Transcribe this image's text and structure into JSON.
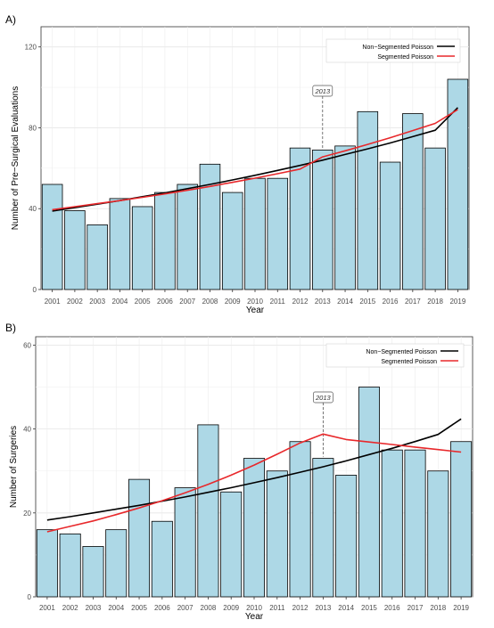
{
  "chart_data": [
    {
      "panel_label": "A)",
      "type": "bar",
      "xlabel": "Year",
      "ylabel": "Number of Pre−Surgical Evaluations",
      "ylim": [
        0,
        130
      ],
      "yticks": [
        0,
        40,
        80,
        120
      ],
      "categories": [
        "2001",
        "2002",
        "2003",
        "2004",
        "2005",
        "2006",
        "2007",
        "2008",
        "2009",
        "2010",
        "2011",
        "2012",
        "2013",
        "2014",
        "2015",
        "2016",
        "2017",
        "2018",
        "2019"
      ],
      "values": [
        52,
        39,
        32,
        45,
        41,
        48,
        52,
        62,
        48,
        55,
        55,
        70,
        69,
        71,
        88,
        63,
        87,
        70,
        104
      ],
      "bar_color": "#add8e6",
      "grid": true,
      "legend_position": "top-right",
      "series": [
        {
          "name": "Non−Segmented Poisson",
          "type": "line",
          "color": "#000000",
          "values": [
            38.8,
            40.5,
            42.2,
            44.0,
            45.9,
            47.8,
            49.9,
            52.0,
            54.2,
            56.5,
            58.9,
            61.4,
            64.0,
            66.8,
            69.6,
            72.5,
            75.6,
            78.8,
            90.0
          ]
        },
        {
          "name": "Segmented Poisson",
          "type": "line",
          "color": "#e8282b",
          "values": [
            39.5,
            41.0,
            42.5,
            44.0,
            45.6,
            47.3,
            49.1,
            51.0,
            53.0,
            55.1,
            57.3,
            59.6,
            65.6,
            68.6,
            71.8,
            75.1,
            78.6,
            82.2,
            89.0
          ]
        }
      ],
      "annotation": {
        "text": "2013",
        "x": "2013"
      }
    },
    {
      "panel_label": "B)",
      "type": "bar",
      "xlabel": "Year",
      "ylabel": "Number of Surgeries",
      "ylim": [
        0,
        62
      ],
      "yticks": [
        0,
        20,
        40,
        60
      ],
      "categories": [
        "2001",
        "2002",
        "2003",
        "2004",
        "2005",
        "2006",
        "2007",
        "2008",
        "2009",
        "2010",
        "2011",
        "2012",
        "2013",
        "2014",
        "2015",
        "2016",
        "2017",
        "2018",
        "2019"
      ],
      "values": [
        16,
        15,
        12,
        16,
        28,
        18,
        26,
        41,
        25,
        33,
        30,
        37,
        33,
        29,
        50,
        35,
        35,
        30,
        37
      ],
      "bar_color": "#add8e6",
      "grid": true,
      "legend_position": "top-right",
      "series": [
        {
          "name": "Non−Segmented Poisson",
          "type": "line",
          "color": "#000000",
          "values": [
            18.3,
            19.1,
            20.0,
            20.9,
            21.8,
            22.8,
            23.8,
            24.9,
            26.0,
            27.2,
            28.4,
            29.7,
            31.0,
            32.4,
            33.9,
            35.4,
            37.0,
            38.7,
            42.4
          ]
        },
        {
          "name": "Segmented Poisson",
          "type": "line",
          "color": "#e8282b",
          "values": [
            15.5,
            16.8,
            18.1,
            19.6,
            21.2,
            22.9,
            24.8,
            26.8,
            29.0,
            31.4,
            34.0,
            36.7,
            38.8,
            37.5,
            36.9,
            36.3,
            35.7,
            35.1,
            34.5
          ]
        }
      ],
      "annotation": {
        "text": "2013",
        "x": "2013"
      }
    }
  ]
}
